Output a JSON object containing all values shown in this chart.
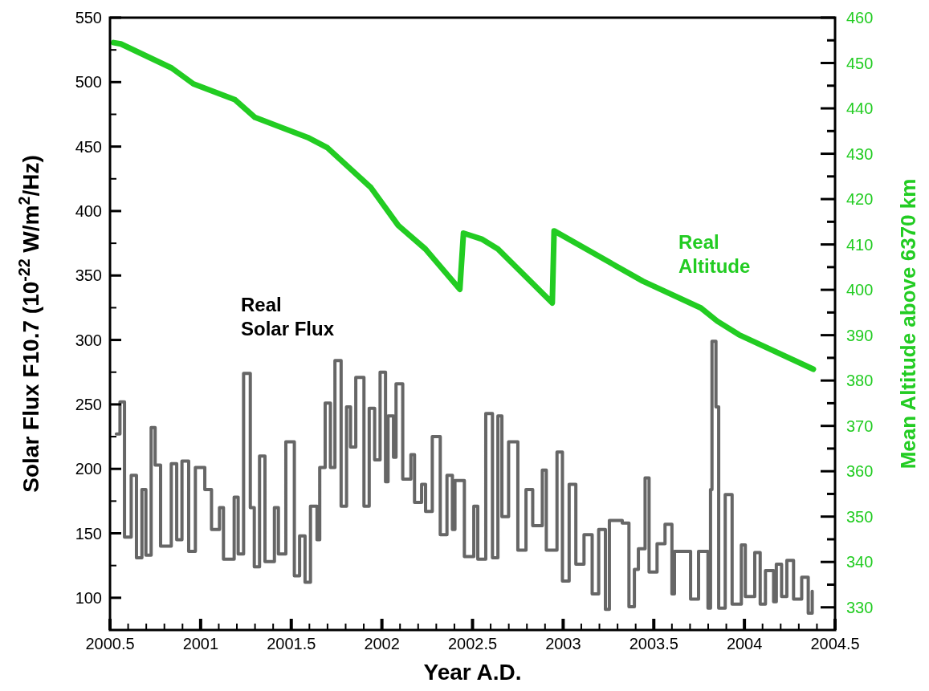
{
  "chart_data": {
    "type": "line",
    "xlabel": "Year A.D.",
    "ylabel": "Solar Flux F10.7 (10$^{-22}$ W/m$^{2}$/Hz)",
    "y2label": "Mean Altitude above 6370 km",
    "xlim": [
      2000.5,
      2004.5
    ],
    "xticks": [
      2000.5,
      {
        "value": 2000.6,
        "label": null
      },
      {
        "value": 2000.7,
        "label": null
      },
      {
        "value": 2000.8,
        "label": null
      },
      {
        "value": 2000.9,
        "label": null
      },
      2001,
      {
        "value": 2001.1,
        "label": null
      },
      {
        "value": 2001.2,
        "label": null
      },
      {
        "value": 2001.3,
        "label": null
      },
      {
        "value": 2001.4,
        "label": null
      },
      2001.5,
      {
        "value": 2001.6,
        "label": null
      },
      {
        "value": 2001.7,
        "label": null
      },
      {
        "value": 2001.8,
        "label": null
      },
      {
        "value": 2001.9,
        "label": null
      },
      2002,
      {
        "value": 2002.1,
        "label": null
      },
      {
        "value": 2002.2,
        "label": null
      },
      {
        "value": 2002.3,
        "label": null
      },
      {
        "value": 2002.4,
        "label": null
      },
      2002.5,
      {
        "value": 2002.6,
        "label": null
      },
      {
        "value": 2002.7,
        "label": null
      },
      {
        "value": 2002.8,
        "label": null
      },
      {
        "value": 2002.9,
        "label": null
      },
      2003,
      {
        "value": 2003.1,
        "label": null
      },
      {
        "value": 2003.2,
        "label": null
      },
      {
        "value": 2003.3,
        "label": null
      },
      {
        "value": 2003.4,
        "label": null
      },
      2003.5,
      {
        "value": 2003.6,
        "label": null
      },
      {
        "value": 2003.7,
        "label": null
      },
      {
        "value": 2003.8,
        "label": null
      },
      {
        "value": 2003.9,
        "label": null
      },
      2004,
      {
        "value": 2004.1,
        "label": null
      },
      {
        "value": 2004.2,
        "label": null
      },
      {
        "value": 2004.3,
        "label": null
      },
      {
        "value": 2004.4,
        "label": null
      },
      2004.5
    ],
    "ylim": [
      75,
      550
    ],
    "yticks": [
      100,
      {
        "value": 125,
        "label": null
      },
      150,
      {
        "value": 175,
        "label": null
      },
      200,
      {
        "value": 225,
        "label": null
      },
      250,
      {
        "value": 275,
        "label": null
      },
      300,
      {
        "value": 325,
        "label": null
      },
      350,
      {
        "value": 375,
        "label": null
      },
      400,
      {
        "value": 425,
        "label": null
      },
      450,
      {
        "value": 475,
        "label": null
      },
      500,
      {
        "value": 525,
        "label": null
      },
      550
    ],
    "y2lim": [
      325,
      460
    ],
    "y2ticks": [
      330,
      {
        "value": 335,
        "label": null
      },
      340,
      {
        "value": 345,
        "label": null
      },
      350,
      {
        "value": 355,
        "label": null
      },
      360,
      {
        "value": 365,
        "label": null
      },
      370,
      {
        "value": 375,
        "label": null
      },
      380,
      {
        "value": 385,
        "label": null
      },
      390,
      {
        "value": 395,
        "label": null
      },
      400,
      {
        "value": 405,
        "label": null
      },
      410,
      {
        "value": 415,
        "label": null
      },
      420,
      {
        "value": 425,
        "label": null
      },
      430,
      {
        "value": 435,
        "label": null
      },
      440,
      {
        "value": 445,
        "label": null
      },
      450,
      {
        "value": 455,
        "label": null
      },
      460
    ],
    "grid": false,
    "marker": "none",
    "line_style": "solid",
    "series": [
      {
        "name": "Real Solar Flux",
        "type": "step",
        "color": "#666666",
        "x": [
          2000.535,
          2000.555,
          2000.58,
          2000.617,
          2000.646,
          2000.676,
          2000.698,
          2000.727,
          2000.749,
          2000.779,
          2000.838,
          2000.868,
          2000.897,
          2000.934,
          2000.971,
          2001.023,
          2001.06,
          2001.104,
          2001.126,
          2001.185,
          2001.207,
          2001.237,
          2001.274,
          2001.296,
          2001.325,
          2001.355,
          2001.407,
          2001.429,
          2001.47,
          2001.517,
          2001.546,
          2001.576,
          2001.606,
          2001.642,
          2001.657,
          2001.687,
          2001.716,
          2001.741,
          2001.775,
          2001.805,
          2001.827,
          2001.856,
          2001.901,
          2001.93,
          2001.96,
          2001.99,
          2002.02,
          2002.034,
          2002.064,
          2002.078,
          2002.115,
          2002.16,
          2002.18,
          2002.219,
          2002.241,
          2002.278,
          2002.322,
          2002.359,
          2002.389,
          2002.403,
          2002.455,
          2002.507,
          2002.529,
          2002.573,
          2002.61,
          2002.64,
          2002.662,
          2002.699,
          2002.75,
          2002.795,
          2002.832,
          2002.885,
          2002.907,
          2002.966,
          2002.996,
          2003.033,
          2003.07,
          2003.115,
          2003.16,
          2003.196,
          2003.233,
          2003.255,
          2003.326,
          2003.363,
          2003.393,
          2003.415,
          2003.452,
          2003.474,
          2003.518,
          2003.562,
          2003.6,
          2003.614,
          2003.703,
          2003.747,
          2003.799,
          2003.813,
          2003.821,
          2003.843,
          2003.858,
          2003.894,
          2003.932,
          2003.983,
          2004.005,
          2004.057,
          2004.087,
          2004.116,
          2004.161,
          2004.176,
          2004.205,
          2004.234,
          2004.271,
          2004.316,
          2004.352,
          2004.374
        ],
        "values": [
          227,
          252,
          147,
          195,
          131,
          184,
          133,
          232,
          203,
          140,
          204,
          145,
          206,
          136,
          201,
          184,
          153,
          170,
          130,
          178,
          134,
          274,
          170,
          124,
          210,
          128,
          170,
          134,
          221,
          117,
          148,
          112,
          171,
          145,
          201,
          251,
          201,
          284,
          171,
          248,
          217,
          271,
          171,
          247,
          207,
          275,
          190,
          241,
          209,
          266,
          192,
          211,
          174,
          188,
          167,
          225,
          149,
          195,
          153,
          191,
          132,
          171,
          130,
          243,
          131,
          241,
          163,
          221,
          137,
          184,
          156,
          199,
          137,
          213,
          113,
          188,
          126,
          149,
          103,
          153,
          91,
          160,
          158,
          93,
          122,
          138,
          193,
          120,
          142,
          157,
          103,
          136,
          99,
          136,
          92,
          184,
          299,
          248,
          92,
          180,
          95,
          141,
          101,
          135,
          95,
          121,
          97,
          126,
          101,
          129,
          99,
          116,
          88,
          105
        ]
      },
      {
        "name": "Real Altitude",
        "axis": "y2",
        "color": "#22cc22",
        "x": [
          2000.52,
          2000.56,
          2000.84,
          2000.96,
          2001.19,
          2001.3,
          2001.59,
          2001.7,
          2001.94,
          2002.09,
          2002.24,
          2002.43,
          2002.45,
          2002.55,
          2002.64,
          2002.94,
          2002.95,
          2003.44,
          2003.76,
          2003.85,
          2003.97,
          2004.38
        ],
        "values": [
          454.5,
          454.2,
          448.9,
          445.4,
          441.9,
          438,
          433.6,
          431.3,
          422.5,
          414.2,
          409,
          400.1,
          412.5,
          411.2,
          409,
          397.1,
          413,
          401.9,
          396,
          393.1,
          390.1,
          382.5
        ]
      }
    ]
  }
}
